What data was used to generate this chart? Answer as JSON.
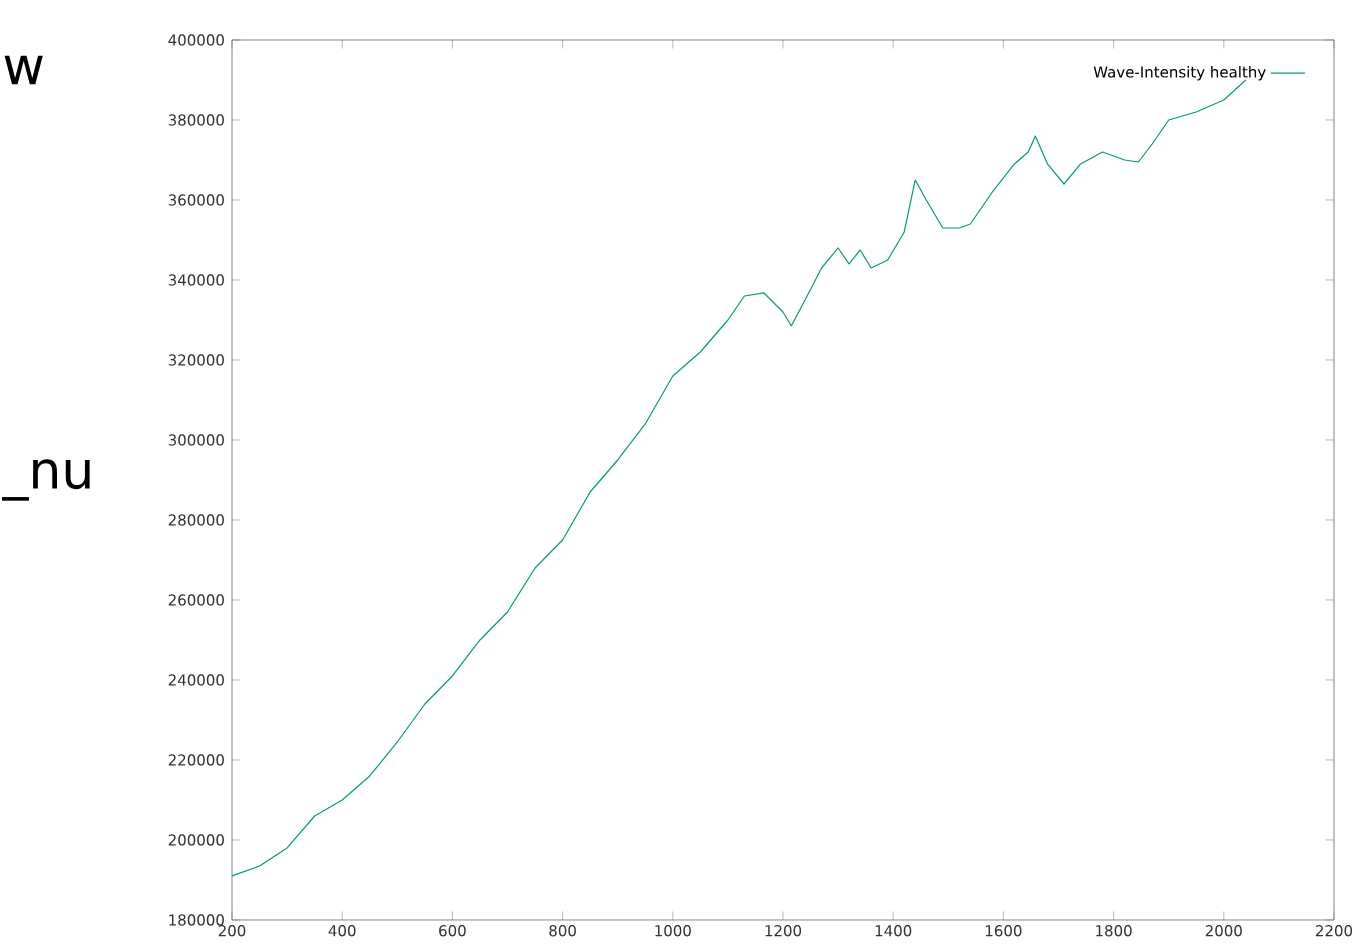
{
  "chart_data": {
    "type": "line",
    "legend": "top right",
    "xlim": [
      200,
      2200
    ],
    "ylim": [
      180000,
      400000
    ],
    "xticks": [
      200,
      400,
      600,
      800,
      1000,
      1200,
      1400,
      1600,
      1800,
      2000,
      2200
    ],
    "yticks": [
      180000,
      200000,
      220000,
      240000,
      260000,
      280000,
      300000,
      320000,
      340000,
      360000,
      380000,
      400000
    ],
    "annotations": [
      "w",
      "_nu"
    ],
    "series": [
      {
        "name": "Wave-Intensity healthy",
        "color": "#009e73",
        "x": [
          200,
          250,
          300,
          350,
          400,
          450,
          500,
          550,
          600,
          650,
          700,
          750,
          800,
          850,
          900,
          950,
          1000,
          1050,
          1100,
          1130,
          1165,
          1200,
          1215,
          1240,
          1270,
          1300,
          1320,
          1340,
          1360,
          1390,
          1420,
          1440,
          1460,
          1490,
          1520,
          1540,
          1580,
          1620,
          1645,
          1658,
          1680,
          1710,
          1740,
          1780,
          1820,
          1845,
          1870,
          1900,
          1950,
          2000,
          2040
        ],
        "values": [
          191000,
          193500,
          198000,
          206000,
          210000,
          216000,
          224500,
          234000,
          241000,
          250000,
          257000,
          268000,
          275000,
          287000,
          295000,
          304000,
          316000,
          322000,
          330000,
          336000,
          336800,
          332000,
          328500,
          335000,
          343000,
          348000,
          344000,
          347500,
          343000,
          345000,
          352000,
          365000,
          360000,
          353000,
          353000,
          354000,
          362000,
          369000,
          372000,
          376000,
          369000,
          364000,
          369000,
          372000,
          370000,
          369500,
          374000,
          380000,
          382000,
          385000,
          390000
        ]
      }
    ]
  }
}
